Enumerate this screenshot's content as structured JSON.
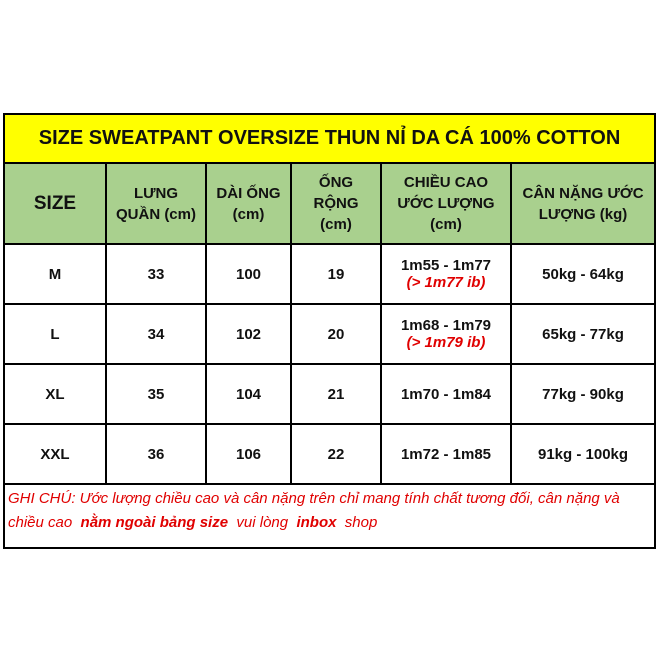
{
  "title": "SIZE SWEATPANT OVERSIZE THUN NỈ DA CÁ 100% COTTON",
  "header": [
    [
      "SIZE"
    ],
    [
      "LƯNG",
      "QUẦN (cm)"
    ],
    [
      "DÀI ỐNG",
      "(cm)"
    ],
    [
      "ỐNG",
      "RỘNG",
      "(cm)"
    ],
    [
      "CHIỀU CAO",
      "ƯỚC LƯỢNG",
      "(cm)"
    ],
    [
      "CÂN NẶNG ƯỚC",
      "LƯỢNG (kg)"
    ]
  ],
  "rows": [
    {
      "size": "M",
      "waist": "33",
      "length": "100",
      "leg": "19",
      "height": "1m55 - 1m77",
      "height_note": "(> 1m77  ib)",
      "weight": "50kg - 64kg"
    },
    {
      "size": "L",
      "waist": "34",
      "length": "102",
      "leg": "20",
      "height": "1m68 - 1m79",
      "height_note": "(> 1m79 ib)",
      "weight": "65kg - 77kg"
    },
    {
      "size": "XL",
      "waist": "35",
      "length": "104",
      "leg": "21",
      "height": "1m70 - 1m84",
      "weight": "77kg - 90kg"
    },
    {
      "size": "XXL",
      "waist": "36",
      "length": "106",
      "leg": "22",
      "height": "1m72 - 1m85",
      "weight": "91kg - 100kg"
    }
  ],
  "note": [
    "GHI CHÚ: Ước lượng chiều cao và cân nặng trên chỉ mang tính chất tương đối, cân nặng và chiều cao  ",
    "nằm ngoài bảng size",
    "  vui lòng  ",
    "inbox",
    "  shop"
  ]
}
